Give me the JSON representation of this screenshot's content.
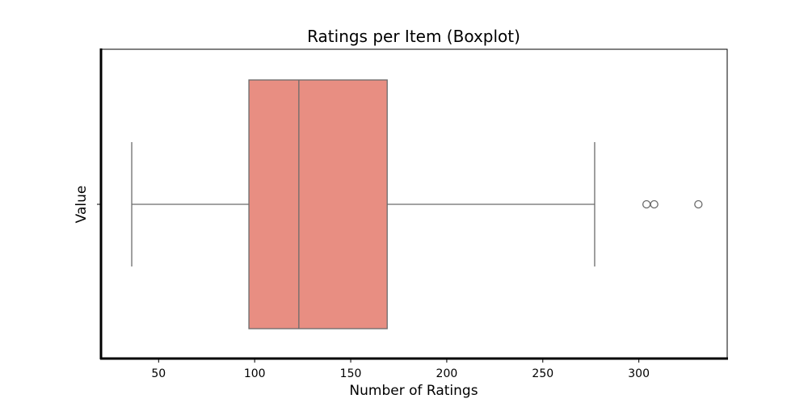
{
  "chart_data": {
    "type": "boxplot",
    "title": "Ratings per Item (Boxplot)",
    "xlabel": "Number of Ratings",
    "ylabel": "Value",
    "orientation": "horizontal",
    "xlim": [
      20,
      346
    ],
    "xticks": [
      50,
      100,
      150,
      200,
      250,
      300
    ],
    "box": {
      "whisker_low": 36,
      "q1": 97,
      "median": 123,
      "q3": 169,
      "whisker_high": 277
    },
    "outliers": [
      304,
      308,
      331
    ],
    "grid": false,
    "colors": {
      "box_fill": "#e88e82",
      "line": "#6b6b6b",
      "axis": "#000000"
    }
  }
}
